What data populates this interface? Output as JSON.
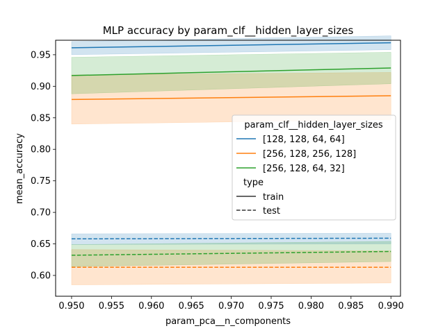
{
  "chart_data": {
    "type": "line",
    "title": "MLP accuracy by param_clf__hidden_layer_sizes",
    "xlabel": "param_pca__n_components",
    "ylabel": "mean_accuracy",
    "xlim": [
      0.948,
      0.9912
    ],
    "ylim": [
      0.567,
      0.973
    ],
    "x_ticks": [
      0.95,
      0.955,
      0.96,
      0.965,
      0.97,
      0.975,
      0.98,
      0.985,
      0.99
    ],
    "x_tick_labels": [
      "0.950",
      "0.955",
      "0.960",
      "0.965",
      "0.970",
      "0.975",
      "0.980",
      "0.985",
      "0.990"
    ],
    "y_ticks": [
      0.6,
      0.65,
      0.7,
      0.75,
      0.8,
      0.85,
      0.9,
      0.95
    ],
    "y_tick_labels": [
      "0.60",
      "0.65",
      "0.70",
      "0.75",
      "0.80",
      "0.85",
      "0.90",
      "0.95"
    ],
    "grid": false,
    "legend": {
      "placement": "center-right",
      "hue_title": "param_clf__hidden_layer_sizes",
      "hue_entries": [
        {
          "label": "[128, 128, 64, 64]",
          "color": "#1f77b4"
        },
        {
          "label": "[256, 128, 256, 128]",
          "color": "#ff7f0e"
        },
        {
          "label": "[256, 128, 64, 32]",
          "color": "#2ca02c"
        }
      ],
      "style_title": "type",
      "style_entries": [
        {
          "label": "train",
          "dash": "solid"
        },
        {
          "label": "test",
          "dash": "dashed"
        }
      ]
    },
    "x": [
      0.95,
      0.99
    ],
    "series": [
      {
        "hue": "[128, 128, 64, 64]",
        "style": "train",
        "color": "#1f77b4",
        "mean": [
          0.961,
          0.969
        ],
        "lower": [
          0.95,
          0.958
        ],
        "upper": [
          0.971,
          0.98
        ]
      },
      {
        "hue": "[256, 128, 256, 128]",
        "style": "train",
        "color": "#ff7f0e",
        "mean": [
          0.879,
          0.885
        ],
        "lower": [
          0.84,
          0.847
        ],
        "upper": [
          0.918,
          0.922
        ]
      },
      {
        "hue": "[256, 128, 64, 32]",
        "style": "train",
        "color": "#2ca02c",
        "mean": [
          0.917,
          0.929
        ],
        "lower": [
          0.888,
          0.904
        ],
        "upper": [
          0.946,
          0.954
        ]
      },
      {
        "hue": "[128, 128, 64, 64]",
        "style": "test",
        "color": "#1f77b4",
        "mean": [
          0.658,
          0.659
        ],
        "lower": [
          0.649,
          0.65
        ],
        "upper": [
          0.666,
          0.667
        ]
      },
      {
        "hue": "[256, 128, 256, 128]",
        "style": "test",
        "color": "#ff7f0e",
        "mean": [
          0.613,
          0.613
        ],
        "lower": [
          0.585,
          0.588
        ],
        "upper": [
          0.641,
          0.639
        ]
      },
      {
        "hue": "[256, 128, 64, 32]",
        "style": "test",
        "color": "#2ca02c",
        "mean": [
          0.632,
          0.638
        ],
        "lower": [
          0.614,
          0.622
        ],
        "upper": [
          0.649,
          0.654
        ]
      }
    ]
  }
}
